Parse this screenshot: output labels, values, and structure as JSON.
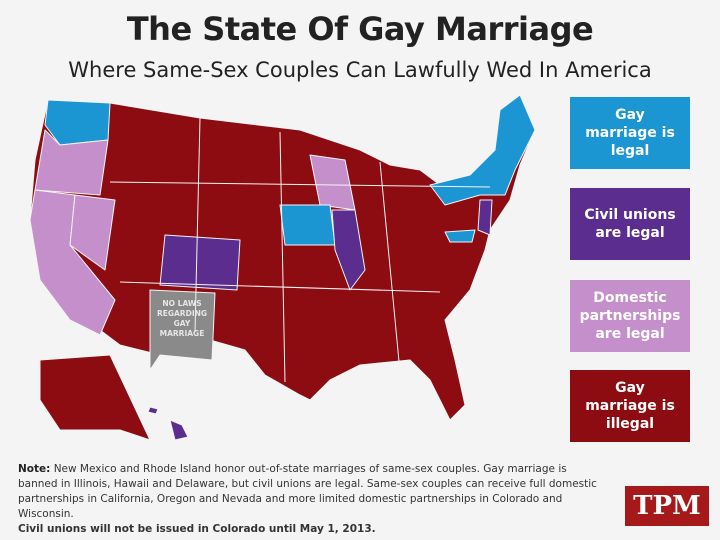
{
  "header": {
    "title": "The State Of Gay Marriage",
    "subtitle": "Where Same-Sex Couples Can Lawfully Wed In America"
  },
  "legend": [
    {
      "label": "Gay marriage is legal",
      "color": "#1b96d3"
    },
    {
      "label": "Civil unions are legal",
      "color": "#5a2d8f"
    },
    {
      "label": "Domestic partnerships are legal",
      "color": "#c48fcb"
    },
    {
      "label": "Gay marriage is illegal",
      "color": "#8c0c12"
    }
  ],
  "map": {
    "no_laws_label": [
      "NO LAWS",
      "REGARDING",
      "GAY",
      "MARRIAGE"
    ]
  },
  "note": {
    "label": "Note:",
    "text": "New Mexico and Rhode Island honor out-of-state marriages of same-sex couples. Gay marriage is banned in Illinois, Hawaii and Delaware, but civil unions are legal. Same-sex couples can receive full domestic partnerships in California, Oregon and Nevada and more limited domestic partnerships in Colorado and Wisconsin.",
    "footnote": "Civil unions will not be issued in Colorado until May 1, 2013."
  },
  "logo": "TPM"
}
